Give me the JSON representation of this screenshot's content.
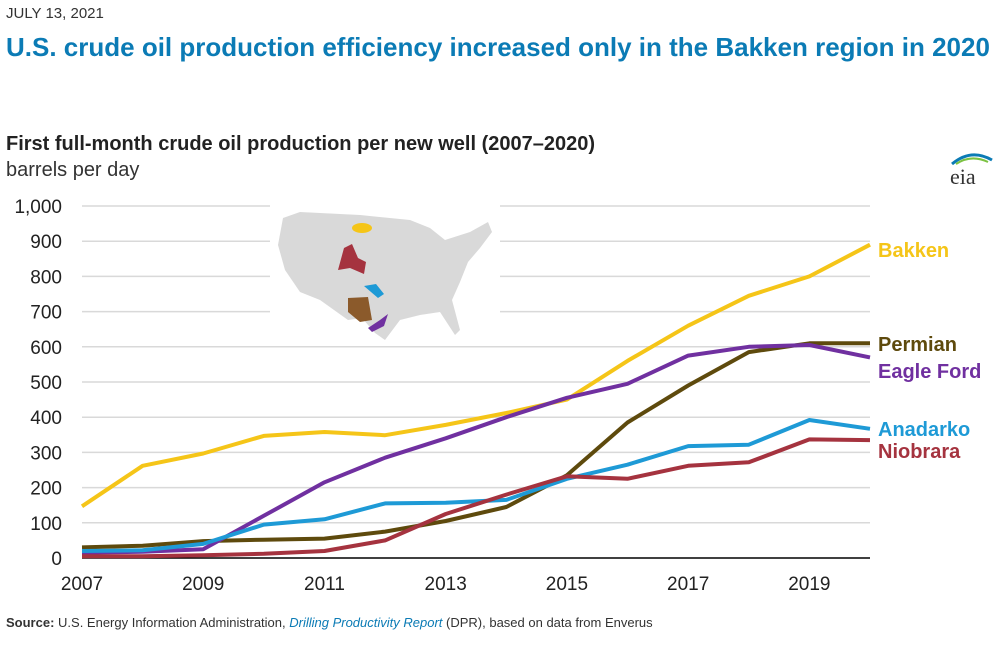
{
  "date": "JULY 13, 2021",
  "headline": "U.S. crude oil production efficiency increased only in the Bakken region in 2020",
  "logo_text": "eia",
  "source": {
    "label": "Source:",
    "text1": " U.S. Energy Information Administration, ",
    "link": "Drilling Productivity Report",
    "text2": " (DPR), based on data from Enverus"
  },
  "chart_data": {
    "type": "line",
    "title": "First full-month crude oil production per new well (2007–2020)",
    "ylabel": "barrels per day",
    "xlabel": "",
    "x": [
      2007,
      2008,
      2009,
      2010,
      2011,
      2012,
      2013,
      2014,
      2015,
      2016,
      2017,
      2018,
      2019,
      2020
    ],
    "xticks": [
      "2007",
      "2009",
      "2011",
      "2013",
      "2015",
      "2017",
      "2019"
    ],
    "yticks": [
      "0",
      "100",
      "200",
      "300",
      "400",
      "500",
      "600",
      "700",
      "800",
      "900",
      "1,000"
    ],
    "ylim": [
      0,
      1000
    ],
    "grid": true,
    "legend": "direct labels at right",
    "series": [
      {
        "name": "Bakken",
        "color": "#f5c518",
        "values": [
          147,
          262,
          297,
          347,
          358,
          349,
          378,
          412,
          450,
          560,
          660,
          745,
          800,
          890
        ]
      },
      {
        "name": "Permian",
        "color": "#5e4a0d",
        "values": [
          30,
          35,
          48,
          52,
          55,
          75,
          105,
          145,
          235,
          385,
          490,
          585,
          610,
          610
        ]
      },
      {
        "name": "Eagle Ford",
        "color": "#7030a0",
        "values": [
          15,
          18,
          25,
          120,
          215,
          285,
          340,
          400,
          455,
          495,
          575,
          600,
          605,
          570
        ]
      },
      {
        "name": "Anadarko",
        "color": "#1e9ad6",
        "values": [
          20,
          22,
          40,
          95,
          110,
          155,
          157,
          165,
          225,
          265,
          318,
          322,
          392,
          367
        ]
      },
      {
        "name": "Niobrara",
        "color": "#a5333f",
        "values": [
          5,
          5,
          8,
          12,
          20,
          50,
          125,
          180,
          232,
          225,
          262,
          272,
          337,
          335
        ]
      }
    ]
  }
}
